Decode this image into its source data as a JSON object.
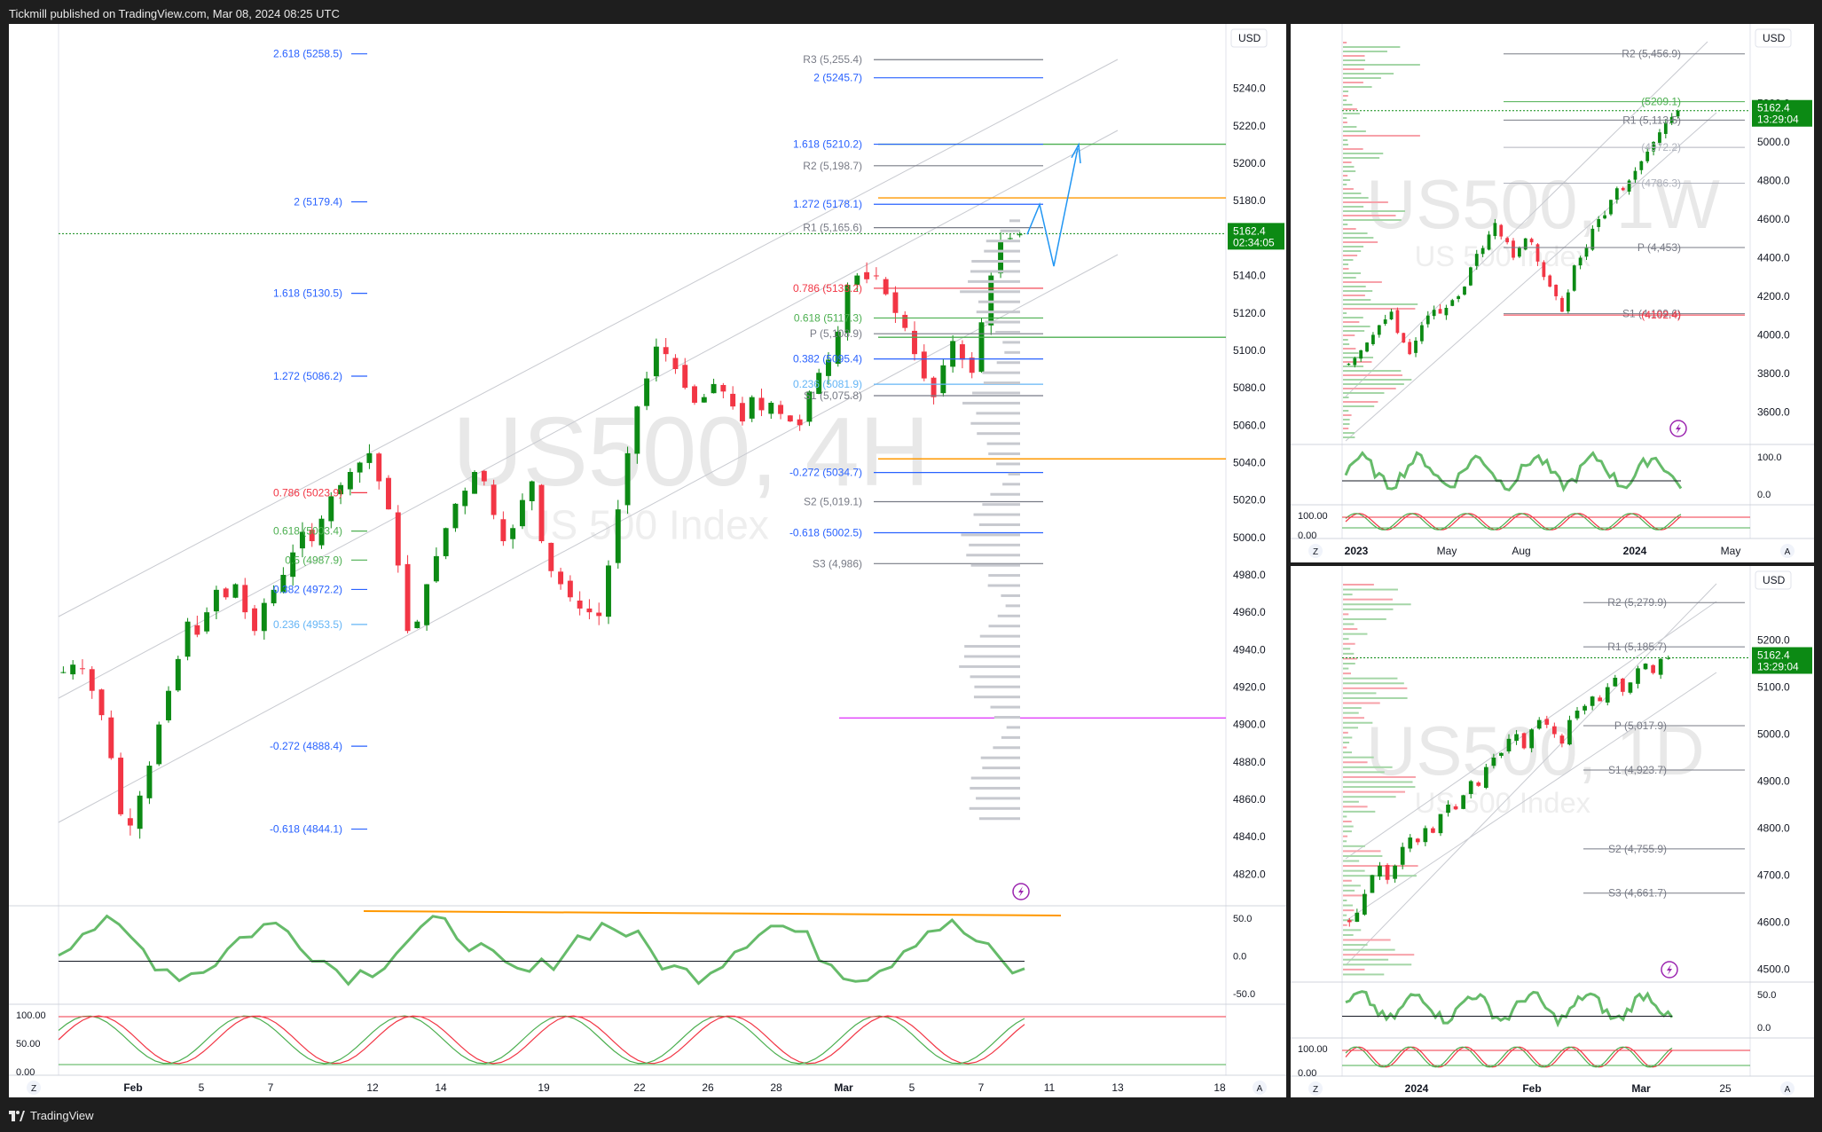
{
  "header": {
    "published": "Tickmill published on TradingView.com, Mar 08, 2024 08:25 UTC"
  },
  "footer": {
    "brand": "TradingView"
  },
  "colors": {
    "bull": "#089981",
    "bull_dark": "#0c8a14",
    "bear": "#f23645",
    "fib_blue": "#2962ff",
    "pivot_gray": "#787b86",
    "fib_red": "#f23645",
    "fib_green": "#4caf50",
    "orange": "#ff9800",
    "magenta": "#e040fb"
  },
  "chart_data": [
    {
      "id": "main-4h",
      "type": "candlestick",
      "symbol": "US500",
      "interval": "4H",
      "watermark": "US500, 4H",
      "watermark_sub": "US 500 Index",
      "currency": "USD",
      "last_price": "5162.4",
      "countdown": "02:34:05",
      "ylim": [
        4805,
        5265
      ],
      "y_ticks": [
        "5240.0",
        "5220.0",
        "5200.0",
        "5180.0",
        "5160.0",
        "5140.0",
        "5120.0",
        "5100.0",
        "5080.0",
        "5060.0",
        "5040.0",
        "5020.0",
        "5000.0",
        "4980.0",
        "4960.0",
        "4940.0",
        "4920.0",
        "4900.0",
        "4880.0",
        "4860.0",
        "4840.0",
        "4820.0"
      ],
      "x_ticks": [
        "Feb",
        "5",
        "7",
        "12",
        "14",
        "19",
        "22",
        "26",
        "28",
        "Mar",
        "5",
        "7",
        "11",
        "13",
        "18"
      ],
      "close_path": [
        4928,
        4932,
        4930,
        4918,
        4905,
        4882,
        4852,
        4846,
        4862,
        4878,
        4900,
        4918,
        4935,
        4955,
        4948,
        4960,
        4972,
        4968,
        4975,
        4960,
        4950,
        4965,
        4972,
        4980,
        4992,
        5003,
        4998,
        5010,
        5022,
        5028,
        5035,
        5040,
        5045,
        5030,
        5015,
        4985,
        4950,
        4955,
        4975,
        4990,
        5005,
        5018,
        5025,
        5035,
        5030,
        5012,
        4998,
        5005,
        5020,
        5030,
        4998,
        4982,
        4975,
        4968,
        4962,
        4960,
        4958,
        4985,
        5015,
        5045,
        5070,
        5085,
        5102,
        5098,
        5090,
        5080,
        5072,
        5075,
        5082,
        5078,
        5070,
        5062,
        5075,
        5068,
        5072,
        5066,
        5062,
        5060,
        5078,
        5088,
        5095,
        5110,
        5135,
        5140,
        5138,
        5140,
        5130,
        5120,
        5112,
        5098,
        5085,
        5075,
        5092,
        5105,
        5095,
        5088,
        5115,
        5140,
        5158,
        5160,
        5162
      ],
      "fib_left": [
        {
          "label": "2.618 (5258.5)",
          "value": 5258.5,
          "color": "#2962ff"
        },
        {
          "label": "2 (5179.4)",
          "value": 5179.4,
          "color": "#2962ff"
        },
        {
          "label": "1.618 (5130.5)",
          "value": 5130.5,
          "color": "#2962ff"
        },
        {
          "label": "1.272 (5086.2)",
          "value": 5086.2,
          "color": "#2962ff"
        },
        {
          "label": "0.786 (5023.9)",
          "value": 5023.9,
          "color": "#f23645"
        },
        {
          "label": "0.618 (5003.4)",
          "value": 5003.4,
          "color": "#4caf50"
        },
        {
          "label": "0.5 (4987.9)",
          "value": 4987.9,
          "color": "#4caf50"
        },
        {
          "label": "0.382 (4972.2)",
          "value": 4972.2,
          "color": "#2962ff"
        },
        {
          "label": "0.236 (4953.5)",
          "value": 4953.5,
          "color": "#64b5f6"
        },
        {
          "label": "-0.272 (4888.4)",
          "value": 4888.4,
          "color": "#2962ff"
        },
        {
          "label": "-0.618 (4844.1)",
          "value": 4844.1,
          "color": "#2962ff"
        }
      ],
      "fib_right": [
        {
          "label": "R3 (5,255.4)",
          "value": 5255.4,
          "color": "#787b86"
        },
        {
          "label": "2 (5245.7)",
          "value": 5245.7,
          "color": "#2962ff"
        },
        {
          "label": "1.618 (5210.2)",
          "value": 5210.2,
          "color": "#2962ff"
        },
        {
          "label": "R2 (5,198.7)",
          "value": 5198.7,
          "color": "#787b86"
        },
        {
          "label": "1.272 (5178.1)",
          "value": 5178.1,
          "color": "#2962ff"
        },
        {
          "label": "R1 (5,165.6)",
          "value": 5165.6,
          "color": "#787b86"
        },
        {
          "label": "0.786 (5133.2)",
          "value": 5133.2,
          "color": "#f23645"
        },
        {
          "label": "0.618 (5117.3)",
          "value": 5117.3,
          "color": "#4caf50"
        },
        {
          "label": "P (5,108.9)",
          "value": 5108.9,
          "color": "#787b86"
        },
        {
          "label": "0.382 (5095.4)",
          "value": 5095.4,
          "color": "#2962ff"
        },
        {
          "label": "0.236 (5081.9)",
          "value": 5081.9,
          "color": "#64b5f6"
        },
        {
          "label": "S1 (5,075.8)",
          "value": 5075.8,
          "color": "#787b86"
        },
        {
          "label": "-0.272 (5034.7)",
          "value": 5034.7,
          "color": "#2962ff"
        },
        {
          "label": "S2 (5,019.1)",
          "value": 5019.1,
          "color": "#787b86"
        },
        {
          "label": "-0.618 (5002.5)",
          "value": 5002.5,
          "color": "#2962ff"
        },
        {
          "label": "S3 (4,986)",
          "value": 4986,
          "color": "#787b86"
        }
      ],
      "hlines": [
        {
          "value": 5210.2,
          "color": "#4caf50"
        },
        {
          "value": 5181.5,
          "color": "#ff9800"
        },
        {
          "value": 5107.0,
          "color": "#4caf50"
        },
        {
          "value": 5042.0,
          "color": "#ff9800"
        },
        {
          "value": 4903.5,
          "color": "#e040fb"
        }
      ],
      "rsi_ticks": [
        "50.0",
        "0.0",
        "-50.0"
      ],
      "stoch_ticks": [
        "100.00",
        "50.00",
        "0.00"
      ]
    },
    {
      "id": "weekly",
      "type": "candlestick",
      "symbol": "US500",
      "interval": "1W",
      "watermark": "US500, 1W",
      "watermark_sub": "US 500 Index",
      "currency": "USD",
      "last_price": "5162.4",
      "countdown": "13:29:04",
      "ylim": [
        3450,
        5520
      ],
      "y_ticks": [
        "5200.0",
        "5000.0",
        "4800.0",
        "4600.0",
        "4400.0",
        "4200.0",
        "4000.0",
        "3800.0",
        "3600.0"
      ],
      "x_ticks": [
        "2023",
        "May",
        "Aug",
        "2024",
        "May"
      ],
      "labels": [
        {
          "label": "R2 (5,456.9)",
          "value": 5456.9,
          "color": "#787b86"
        },
        {
          "label": "(5209.1)",
          "value": 5209.1,
          "color": "#4caf50"
        },
        {
          "label": "R1 (5,113.5)",
          "value": 5113.5,
          "color": "#787b86"
        },
        {
          "label": "(4972.2)",
          "value": 4972.2,
          "color": "#b0b3bd"
        },
        {
          "label": "(4786.3)",
          "value": 4786.3,
          "color": "#b0b3bd"
        },
        {
          "label": "P (4,453)",
          "value": 4453,
          "color": "#787b86"
        },
        {
          "label": "S1 (4,109.6)",
          "value": 4109.6,
          "color": "#787b86"
        },
        {
          "label": "(4102.4)",
          "value": 4102.4,
          "color": "#f23645"
        }
      ],
      "close_path": [
        3850,
        3880,
        3920,
        3960,
        4000,
        4050,
        4080,
        4120,
        4010,
        3960,
        3900,
        3970,
        4050,
        4100,
        4130,
        4110,
        4140,
        4180,
        4200,
        4250,
        4350,
        4420,
        4450,
        4520,
        4580,
        4510,
        4480,
        4400,
        4450,
        4500,
        4480,
        4380,
        4300,
        4250,
        4200,
        4120,
        4220,
        4360,
        4400,
        4450,
        4550,
        4600,
        4620,
        4700,
        4760,
        4750,
        4800,
        4850,
        4900,
        4950,
        5000,
        5050,
        5100,
        5130,
        5162
      ],
      "rsi_ticks": [
        "100.0",
        "0.0"
      ],
      "stoch_ticks": [
        "100.00",
        "0.00"
      ]
    },
    {
      "id": "daily",
      "type": "candlestick",
      "symbol": "US500",
      "interval": "1D",
      "watermark": "US500, 1D",
      "watermark_sub": "US 500 Index",
      "currency": "USD",
      "last_price": "5162.4",
      "countdown": "13:29:04",
      "ylim": [
        4480,
        5320
      ],
      "y_ticks": [
        "5200.0",
        "5100.0",
        "5000.0",
        "4900.0",
        "4800.0",
        "4700.0",
        "4600.0",
        "4500.0"
      ],
      "x_ticks": [
        "2024",
        "Feb",
        "Mar",
        "25"
      ],
      "labels": [
        {
          "label": "R2 (5,279.9)",
          "value": 5279.9,
          "color": "#787b86"
        },
        {
          "label": "R1 (5,185.7)",
          "value": 5185.7,
          "color": "#787b86"
        },
        {
          "label": "P (5,017.9)",
          "value": 5017.9,
          "color": "#787b86"
        },
        {
          "label": "S1 (4,923.7)",
          "value": 4923.7,
          "color": "#787b86"
        },
        {
          "label": "S2 (4,755.9)",
          "value": 4755.9,
          "color": "#787b86"
        },
        {
          "label": "S3 (4,661.7)",
          "value": 4661.7,
          "color": "#787b86"
        }
      ],
      "close_path": [
        4600,
        4620,
        4660,
        4700,
        4720,
        4690,
        4720,
        4760,
        4780,
        4770,
        4800,
        4790,
        4830,
        4850,
        4840,
        4870,
        4900,
        4890,
        4930,
        4950,
        4960,
        4990,
        5000,
        4970,
        5010,
        5030,
        5020,
        5000,
        4980,
        5030,
        5050,
        5060,
        5080,
        5070,
        5100,
        5120,
        5090,
        5110,
        5140,
        5150,
        5130,
        5160,
        5162
      ],
      "rsi_ticks": [
        "50.0",
        "0.0"
      ],
      "stoch_ticks": [
        "100.00",
        "0.00"
      ]
    }
  ]
}
